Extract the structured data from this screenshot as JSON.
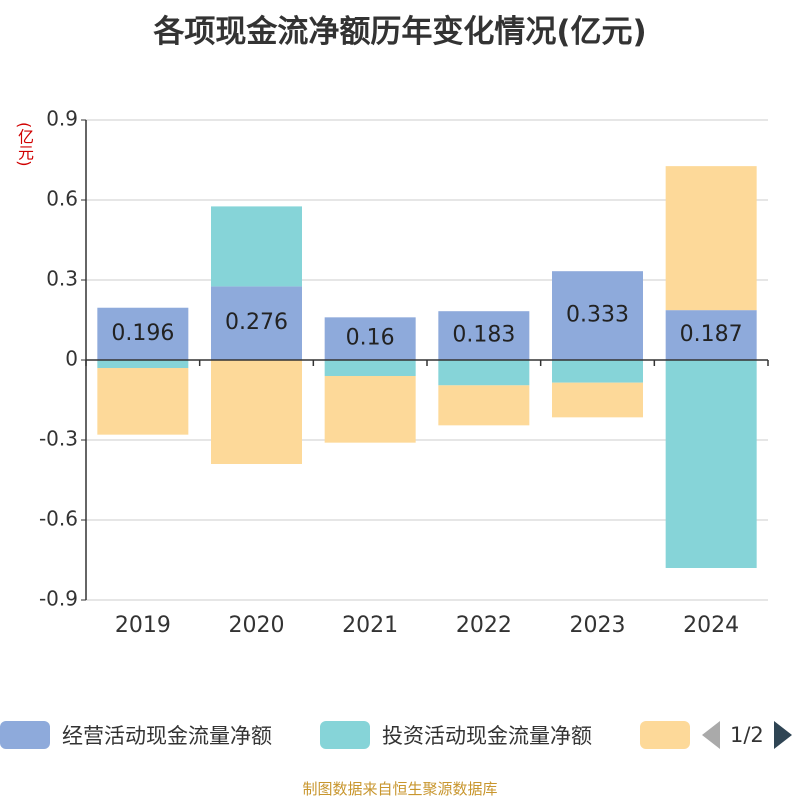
{
  "chart_data": {
    "type": "bar",
    "stacked": true,
    "title": "各项现金流净额历年变化情况(亿元)",
    "ylabel": "(亿元)",
    "categories": [
      "2019",
      "2020",
      "2021",
      "2022",
      "2023",
      "2024"
    ],
    "ylim": [
      -0.9,
      0.9
    ],
    "yticks": [
      0.9,
      0.6,
      0.3,
      0,
      -0.3,
      -0.6,
      -0.9
    ],
    "ytick_labels": [
      "0.9",
      "0.6",
      "0.3",
      "0",
      "-0.3",
      "-0.6",
      "-0.9"
    ],
    "grid": true,
    "series": [
      {
        "name": "经营活动现金流量净额",
        "color": "#8eaadb",
        "values": [
          0.196,
          0.276,
          0.16,
          0.183,
          0.333,
          0.187
        ],
        "labels": [
          "0.196",
          "0.276",
          "0.16",
          "0.183",
          "0.333",
          "0.187"
        ]
      },
      {
        "name": "投资活动现金流量净额",
        "color": "#86d4d8",
        "values": [
          -0.03,
          0.3,
          -0.06,
          -0.095,
          -0.085,
          -0.78
        ]
      },
      {
        "name": "",
        "color": "#fdd999",
        "values": [
          -0.25,
          -0.39,
          -0.25,
          -0.15,
          -0.13,
          0.54
        ]
      }
    ]
  },
  "legend": {
    "items": [
      {
        "label": "经营活动现金流量净额",
        "color": "#8eaadb"
      },
      {
        "label": "投资活动现金流量净额",
        "color": "#86d4d8"
      },
      {
        "label": "",
        "color": "#fdd999"
      }
    ],
    "pager": "1/2"
  },
  "footer": {
    "source": "制图数据来自恒生聚源数据库"
  }
}
